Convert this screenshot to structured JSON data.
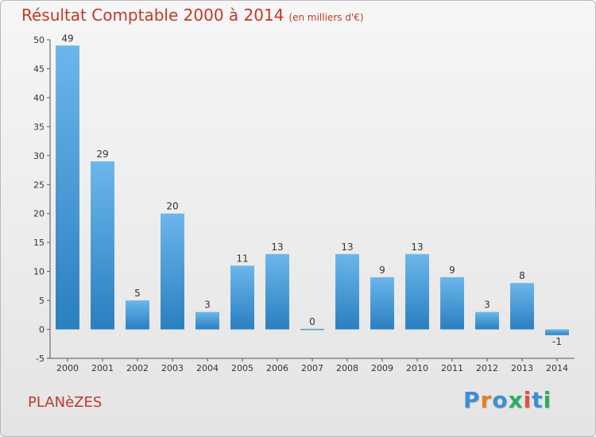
{
  "header": {
    "title": "Résultat Comptable 2000 à 2014",
    "unit": "(en milliers d'€)"
  },
  "commune": "PLANèZES",
  "logo": {
    "letters": [
      "P",
      "r",
      "o",
      "x",
      "i",
      "t",
      "i"
    ],
    "colors": [
      "#3a8fd6",
      "#e67e22",
      "#3a8fd6",
      "#27ae60",
      "#e74c3c",
      "#3a8fd6",
      "#27ae60"
    ]
  },
  "colors": {
    "bar_light": "#5dade2",
    "bar_dark": "#2e86c1",
    "title": "#c0392b"
  },
  "chart_data": {
    "type": "bar",
    "categories": [
      "2000",
      "2001",
      "2002",
      "2003",
      "2004",
      "2005",
      "2006",
      "2007",
      "2008",
      "2009",
      "2010",
      "2011",
      "2012",
      "2013",
      "2014"
    ],
    "values": [
      49,
      29,
      5,
      20,
      3,
      11,
      13,
      0,
      13,
      9,
      13,
      9,
      3,
      8,
      -1
    ],
    "ylim": [
      -5,
      50
    ],
    "yticks": [
      -5,
      0,
      5,
      10,
      15,
      20,
      25,
      30,
      35,
      40,
      45,
      50
    ],
    "grid": false
  }
}
